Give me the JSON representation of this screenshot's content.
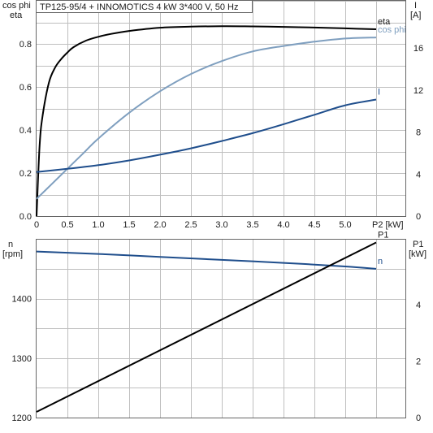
{
  "title": "TP125-95/4 + INNOMOTICS   4 kW   3*400 V, 50 Hz",
  "colors": {
    "eta": "#000000",
    "cos_phi": "#7f9fbf",
    "I": "#1f4e8c",
    "n": "#1f4e8c",
    "P1": "#000000",
    "grid": "#bfbfbf",
    "frame": "#666666"
  },
  "chart_data": [
    {
      "type": "line",
      "title": "TP125-95/4 + INNOMOTICS   4 kW   3*400 V, 50 Hz",
      "xlabel": "P2 [kW]",
      "xlim": [
        0,
        5.5
      ],
      "x_ticks": [
        "0",
        "0.5",
        "1.0",
        "1.5",
        "2.0",
        "2.5",
        "3.0",
        "3.5",
        "4.0",
        "4.5",
        "5.0"
      ],
      "ylabel_left_top": "cos phi",
      "ylabel_left_bottom": "eta",
      "ylim_left": [
        0,
        1.0
      ],
      "y_ticks_left": [
        "0.0",
        "0.2",
        "0.4",
        "0.6",
        "0.8"
      ],
      "ylabel_right_top": "I",
      "ylabel_right_bottom": "[A]",
      "ylim_right": [
        0,
        20.5
      ],
      "y_ticks_right": [
        "0",
        "4",
        "8",
        "12",
        "16"
      ],
      "grid": true,
      "series": [
        {
          "name": "eta",
          "axis": "left",
          "x": [
            0,
            0.05,
            0.1,
            0.2,
            0.3,
            0.4,
            0.5,
            0.6,
            0.8,
            1.0,
            1.2,
            1.5,
            2.0,
            2.5,
            3.0,
            3.5,
            4.0,
            4.5,
            5.0,
            5.5
          ],
          "y": [
            0,
            0.33,
            0.47,
            0.62,
            0.69,
            0.73,
            0.76,
            0.785,
            0.815,
            0.833,
            0.846,
            0.86,
            0.875,
            0.88,
            0.882,
            0.881,
            0.879,
            0.876,
            0.872,
            0.868
          ]
        },
        {
          "name": "cos phi",
          "axis": "left",
          "x": [
            0,
            0.25,
            0.5,
            0.75,
            1.0,
            1.5,
            2.0,
            2.5,
            3.0,
            3.5,
            4.0,
            4.5,
            5.0,
            5.5
          ],
          "y": [
            0.08,
            0.15,
            0.22,
            0.29,
            0.36,
            0.48,
            0.58,
            0.66,
            0.72,
            0.765,
            0.79,
            0.81,
            0.825,
            0.83
          ]
        },
        {
          "name": "I",
          "axis": "right",
          "x": [
            0,
            0.5,
            1.0,
            1.5,
            2.0,
            2.5,
            3.0,
            3.5,
            4.0,
            4.5,
            5.0,
            5.5
          ],
          "y": [
            4.2,
            4.5,
            4.85,
            5.3,
            5.85,
            6.45,
            7.15,
            7.9,
            8.75,
            9.65,
            10.55,
            11.1
          ]
        }
      ]
    },
    {
      "type": "line",
      "xlim": [
        0,
        5.5
      ],
      "ylabel_left_top": "n",
      "ylabel_left_bottom": "[rpm]",
      "ylim_left": [
        1200,
        1499
      ],
      "y_ticks_left": [
        "1200",
        "1300",
        "1400"
      ],
      "ylabel_right_top": "P1",
      "ylabel_right_bottom": "[kW]",
      "ylim_right": [
        0,
        6.3
      ],
      "y_ticks_right": [
        "0",
        "2",
        "4"
      ],
      "grid": true,
      "series": [
        {
          "name": "n",
          "axis": "left",
          "x": [
            0,
            1.0,
            2.0,
            3.0,
            4.0,
            5.0,
            5.5
          ],
          "y": [
            1479,
            1475,
            1470,
            1465,
            1460,
            1454,
            1450
          ]
        },
        {
          "name": "P1",
          "axis": "right",
          "x": [
            0,
            5.5
          ],
          "y": [
            0.2,
            6.2
          ]
        }
      ]
    }
  ]
}
